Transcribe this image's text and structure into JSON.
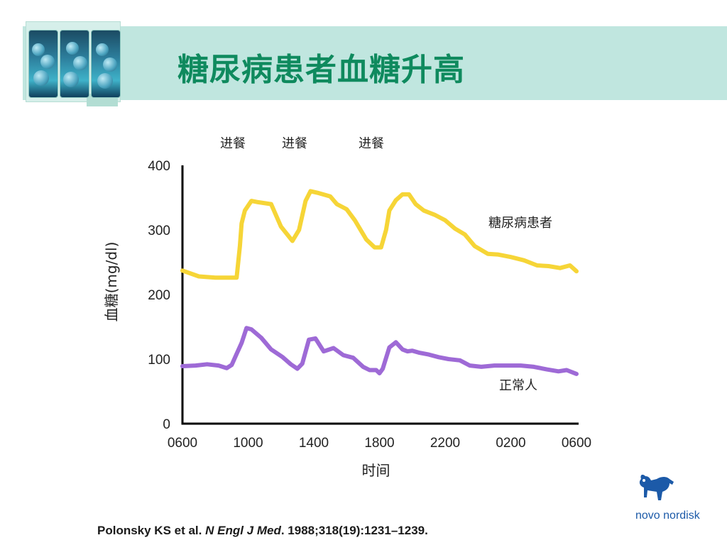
{
  "header": {
    "title": "糖尿病患者血糖升高"
  },
  "chart_data": {
    "type": "line",
    "xlabel": "时间",
    "ylabel": "血糖(mg/dl)",
    "ylim": [
      0,
      400
    ],
    "yticks": [
      "0",
      "100",
      "200",
      "300",
      "400"
    ],
    "xticks": [
      "0600",
      "1000",
      "1400",
      "1800",
      "2200",
      "0200",
      "0600"
    ],
    "x_range_hours": [
      6,
      30
    ],
    "annotations": [
      "进餐",
      "进餐",
      "进餐"
    ],
    "series": [
      {
        "name": "糖尿病患者",
        "color": "#f6d537",
        "x": [
          6,
          7,
          8,
          8.7,
          9.3,
          9.5,
          9.6,
          9.8,
          10.2,
          10.6,
          11.4,
          12.0,
          12.7,
          13.1,
          13.5,
          13.8,
          14.3,
          15.0,
          15.4,
          16.0,
          16.5,
          17.2,
          17.7,
          18.1,
          18.4,
          18.6,
          19.0,
          19.4,
          19.8,
          20.2,
          20.7,
          21.4,
          22.0,
          22.6,
          23.2,
          23.8,
          24.6,
          25.2,
          26.0,
          26.8,
          27.6,
          28.3,
          29.0,
          29.6,
          30.0
        ],
        "values": [
          237,
          228,
          226,
          226,
          226,
          275,
          310,
          330,
          345,
          343,
          340,
          305,
          283,
          300,
          345,
          360,
          357,
          352,
          340,
          332,
          315,
          285,
          273,
          273,
          300,
          330,
          346,
          355,
          355,
          340,
          330,
          323,
          315,
          302,
          293,
          275,
          263,
          262,
          258,
          253,
          245,
          244,
          241,
          245,
          236
        ]
      },
      {
        "name": "正常人",
        "color": "#9e6ad6",
        "x": [
          6,
          6.8,
          7.5,
          8.2,
          8.7,
          9.0,
          9.3,
          9.6,
          9.9,
          10.2,
          10.8,
          11.4,
          12.1,
          12.6,
          13.0,
          13.3,
          13.7,
          14.1,
          14.6,
          15.2,
          15.8,
          16.4,
          17.0,
          17.4,
          17.8,
          18.0,
          18.2,
          18.6,
          19.0,
          19.4,
          19.7,
          20.0,
          20.4,
          21.0,
          21.6,
          22.2,
          22.9,
          23.5,
          24.2,
          25.0,
          25.8,
          26.6,
          27.4,
          28.2,
          28.9,
          29.4,
          30.0
        ],
        "values": [
          89,
          90,
          92,
          90,
          86,
          91,
          108,
          125,
          148,
          146,
          133,
          115,
          103,
          92,
          85,
          93,
          130,
          132,
          112,
          117,
          106,
          102,
          88,
          83,
          83,
          78,
          85,
          118,
          126,
          115,
          112,
          113,
          110,
          107,
          103,
          100,
          98,
          90,
          88,
          90,
          90,
          90,
          88,
          84,
          81,
          83,
          77
        ]
      }
    ]
  },
  "citation": {
    "authors": "Polonsky KS et al. ",
    "journal": "N Engl J Med",
    "details": ". 1988;318(19):1231–1239."
  },
  "logo": {
    "name": "novo-nordisk-logo",
    "text": "novo nordisk"
  }
}
